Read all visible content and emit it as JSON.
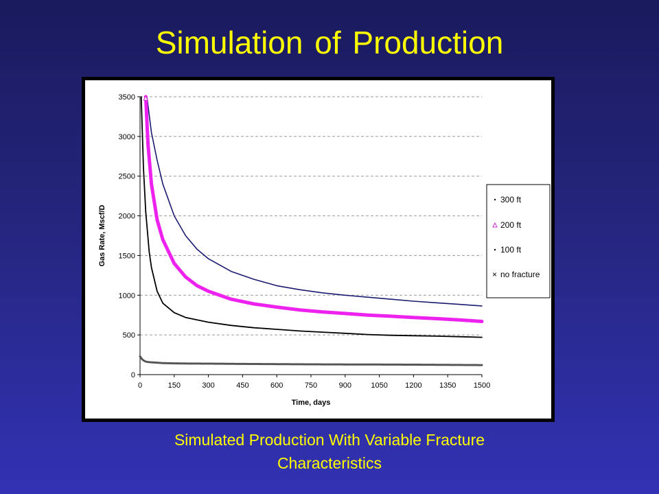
{
  "slide": {
    "title": "Simulation of Production",
    "caption_line1": "Simulated Production With Variable Fracture",
    "caption_line2": "Characteristics"
  },
  "colors": {
    "background_top": "#1a1a5e",
    "background_bottom": "#3232b4",
    "title_text": "#ffff00",
    "series_300ft": "#1a1a70",
    "series_200ft": "#ee22ee",
    "series_100ft": "#000000",
    "series_no_fracture": "#555555"
  },
  "chart_data": {
    "type": "line",
    "title": "",
    "xlabel": "Time, days",
    "ylabel": "Gas Rate, Mscf/D",
    "xlim": [
      0,
      1500
    ],
    "ylim": [
      0,
      3500
    ],
    "xticks": [
      0,
      150,
      300,
      450,
      600,
      750,
      900,
      1050,
      1200,
      1350,
      1500
    ],
    "yticks": [
      0,
      500,
      1000,
      1500,
      2000,
      2500,
      3000,
      3500
    ],
    "grid": "horizontal-dashed",
    "legend_position": "right",
    "series": [
      {
        "name": "300 ft",
        "marker": "dot",
        "x": [
          30,
          50,
          75,
          100,
          150,
          200,
          250,
          300,
          400,
          500,
          600,
          700,
          800,
          900,
          1000,
          1100,
          1200,
          1300,
          1400,
          1500
        ],
        "y": [
          3500,
          3050,
          2700,
          2400,
          2000,
          1750,
          1580,
          1460,
          1300,
          1200,
          1120,
          1070,
          1030,
          1000,
          975,
          950,
          925,
          905,
          885,
          865
        ]
      },
      {
        "name": "200 ft",
        "marker": "triangle",
        "x": [
          25,
          35,
          50,
          75,
          100,
          150,
          200,
          250,
          300,
          400,
          500,
          600,
          700,
          800,
          900,
          1000,
          1100,
          1200,
          1300,
          1400,
          1500
        ],
        "y": [
          3500,
          2900,
          2400,
          1950,
          1700,
          1400,
          1230,
          1120,
          1050,
          950,
          890,
          850,
          815,
          790,
          770,
          750,
          735,
          720,
          705,
          690,
          670
        ]
      },
      {
        "name": "100 ft",
        "marker": "dot",
        "x": [
          5,
          15,
          25,
          40,
          50,
          75,
          100,
          150,
          200,
          300,
          400,
          500,
          600,
          700,
          800,
          900,
          1000,
          1100,
          1200,
          1300,
          1400,
          1500
        ],
        "y": [
          3500,
          2600,
          2050,
          1550,
          1350,
          1050,
          900,
          780,
          720,
          660,
          620,
          590,
          570,
          550,
          535,
          520,
          505,
          495,
          490,
          485,
          478,
          470
        ]
      },
      {
        "name": "no fracture",
        "marker": "x",
        "x": [
          0,
          10,
          20,
          30,
          50,
          75,
          100,
          150,
          200,
          300,
          450,
          600,
          750,
          900,
          1050,
          1200,
          1350,
          1500
        ],
        "y": [
          230,
          190,
          170,
          160,
          155,
          150,
          145,
          142,
          140,
          138,
          135,
          132,
          130,
          128,
          127,
          125,
          123,
          120
        ]
      }
    ]
  }
}
